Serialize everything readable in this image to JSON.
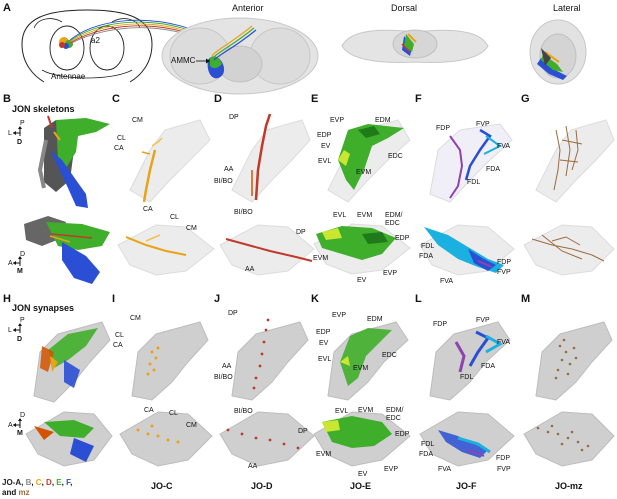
{
  "panels": {
    "A": "A",
    "B": "B",
    "C": "C",
    "D": "D",
    "E": "E",
    "F": "F",
    "G": "G",
    "H": "H",
    "I": "I",
    "J": "J",
    "K": "K",
    "L": "L",
    "M": "M"
  },
  "panelA": {
    "a2": "a2",
    "antennae": "Antennae",
    "anterior": "Anterior",
    "dorsal": "Dorsal",
    "lateral": "Lateral",
    "ammc": "AMMC"
  },
  "sections": {
    "skeletons": "JON skeletons",
    "synapses": "JON synapses"
  },
  "axes": {
    "P": "P",
    "L": "L",
    "D": "D",
    "A": "A",
    "M": "M"
  },
  "C": {
    "cm": "CM",
    "cl": "CL",
    "ca": "CA"
  },
  "D": {
    "dp": "DP",
    "aa": "AA",
    "bibo": "BI/BO"
  },
  "E": {
    "evp": "EVP",
    "edm": "EDM",
    "edp": "EDP",
    "ev": "EV",
    "evl": "EVL",
    "evm": "EVM",
    "edc": "EDC",
    "edm_edc": "EDM/\nEDC"
  },
  "F": {
    "fdp": "FDP",
    "fvp": "FVP",
    "fva": "FVA",
    "fda": "FDA",
    "fdl": "FDL"
  },
  "bottom": {
    "c": "JO-C",
    "d": "JO-D",
    "e": "JO-E",
    "f": "JO-F",
    "mz": "JO-mz"
  },
  "legend": {
    "jo_a": "JO-A, ",
    "b": "B",
    "c": "C",
    "d": "D",
    "e": "E",
    "f": "F",
    "comma": ", ",
    "and": "and ",
    "mz": "mz"
  },
  "colors": {
    "A": "#222222",
    "B": "#8a8a8a",
    "C": "#e8a317",
    "D": "#c0392b",
    "E": "#3fae2a",
    "F": "#2a4fd4",
    "mz": "#9a6b3f",
    "Flight": "#8e44ad",
    "Fcyan": "#1ab0e0"
  }
}
